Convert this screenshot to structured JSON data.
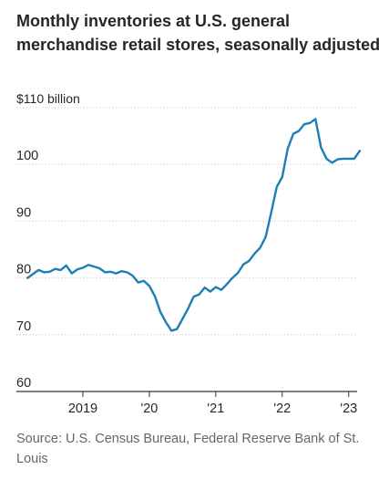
{
  "title": "Monthly inventories at U.S. general merchandise retail stores, seasonally adjusted",
  "source": "Source: U.S. Census Bureau, Federal Reserve Bank of St. Louis",
  "colors": {
    "line": "#1c7fb5",
    "grid": "#d6d6d6",
    "axis": "#333333",
    "text": "#262626",
    "muted": "#666666"
  },
  "chart_data": {
    "type": "line",
    "title": "Monthly inventories at U.S. general merchandise retail stores, seasonally adjusted",
    "xlabel": "",
    "ylabel": "",
    "ylim": [
      60,
      110
    ],
    "grid": true,
    "y_ticks": [
      {
        "value": 110,
        "label": "$110 billion"
      },
      {
        "value": 100,
        "label": "100"
      },
      {
        "value": 90,
        "label": "90"
      },
      {
        "value": 80,
        "label": "80"
      },
      {
        "value": 70,
        "label": "70"
      },
      {
        "value": 60,
        "label": "60"
      }
    ],
    "x_ticks": [
      {
        "date": "2019-01",
        "label": "2019"
      },
      {
        "date": "2020-01",
        "label": "'20"
      },
      {
        "date": "2021-01",
        "label": "'21"
      },
      {
        "date": "2022-01",
        "label": "'22"
      },
      {
        "date": "2023-01",
        "label": "'23"
      }
    ],
    "x_range": [
      "2018-01",
      "2023-04"
    ],
    "series": [
      {
        "x": [
          "2018-03",
          "2018-04",
          "2018-05",
          "2018-06",
          "2018-07",
          "2018-08",
          "2018-09",
          "2018-10",
          "2018-11",
          "2018-12",
          "2019-01",
          "2019-02",
          "2019-03",
          "2019-04",
          "2019-05",
          "2019-06",
          "2019-07",
          "2019-08",
          "2019-09",
          "2019-10",
          "2019-11",
          "2019-12",
          "2020-01",
          "2020-02",
          "2020-03",
          "2020-04",
          "2020-05",
          "2020-06",
          "2020-07",
          "2020-08",
          "2020-09",
          "2020-10",
          "2020-11",
          "2020-12",
          "2021-01",
          "2021-02",
          "2021-03",
          "2021-04",
          "2021-05",
          "2021-06",
          "2021-07",
          "2021-08",
          "2021-09",
          "2021-10",
          "2021-11",
          "2021-12",
          "2022-01",
          "2022-02",
          "2022-03",
          "2022-04",
          "2022-05",
          "2022-06",
          "2022-07",
          "2022-08",
          "2022-09",
          "2022-10",
          "2022-11",
          "2022-12",
          "2023-01",
          "2023-02",
          "2023-03"
        ],
        "y": [
          80.0,
          80.7,
          81.4,
          81.0,
          81.1,
          81.6,
          81.4,
          82.2,
          80.8,
          81.5,
          81.8,
          82.3,
          82.0,
          81.7,
          81.0,
          81.1,
          80.8,
          81.2,
          81.0,
          80.4,
          79.2,
          79.5,
          78.6,
          76.8,
          74.0,
          72.2,
          70.7,
          71.0,
          72.8,
          74.6,
          76.7,
          77.1,
          78.3,
          77.6,
          78.4,
          77.9,
          78.9,
          80.0,
          80.9,
          82.4,
          83.0,
          84.3,
          85.3,
          87.2,
          91.5,
          96.0,
          97.8,
          102.8,
          105.4,
          105.9,
          107.1,
          107.3,
          108.0,
          103.0,
          101.0,
          100.3,
          100.9,
          101.0,
          101.0,
          101.0,
          102.4
        ]
      }
    ]
  }
}
